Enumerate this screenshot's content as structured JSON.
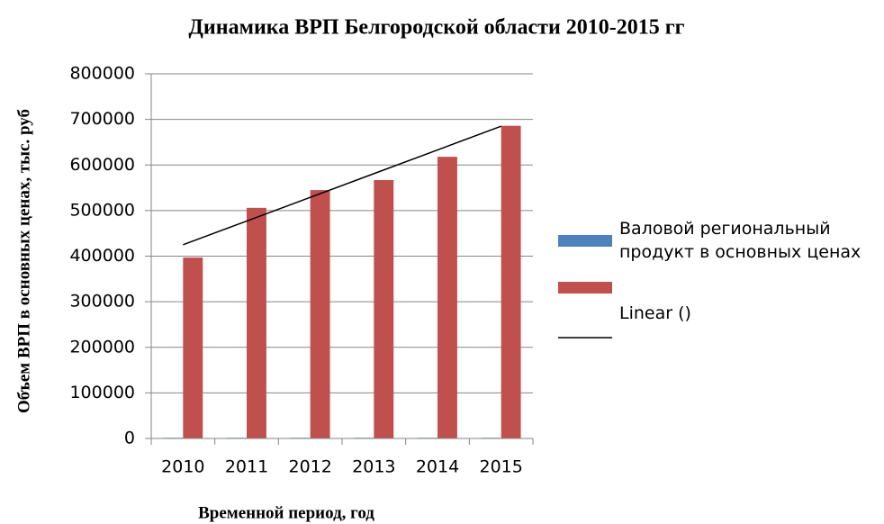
{
  "chart_data": {
    "type": "bar",
    "title": "Динамика ВРП Белгородской области 2010-2015 гг",
    "y_label": "Объем ВРП в основных ценах, тыс. руб",
    "x_label": "Временной период, год",
    "categories": [
      "2010",
      "2011",
      "2012",
      "2013",
      "2014",
      "2015"
    ],
    "series": [
      {
        "name": "Валовой региональный продукт в основных ценах",
        "color": "#4f81bd",
        "values": [
          1500,
          1500,
          1500,
          1500,
          1500,
          1500
        ]
      },
      {
        "color": "#c0504d",
        "values": [
          397000,
          506000,
          545000,
          567000,
          618000,
          686000
        ]
      },
      {
        "name": "Linear ()",
        "type": "line",
        "color": "#000000",
        "values": [
          425000,
          477000,
          529000,
          581000,
          633000,
          685000
        ]
      }
    ],
    "ylim": [
      0,
      800000
    ],
    "yticks": [
      0,
      100000,
      200000,
      300000,
      400000,
      500000,
      600000,
      700000,
      800000
    ],
    "grid": true,
    "legend": "right"
  }
}
